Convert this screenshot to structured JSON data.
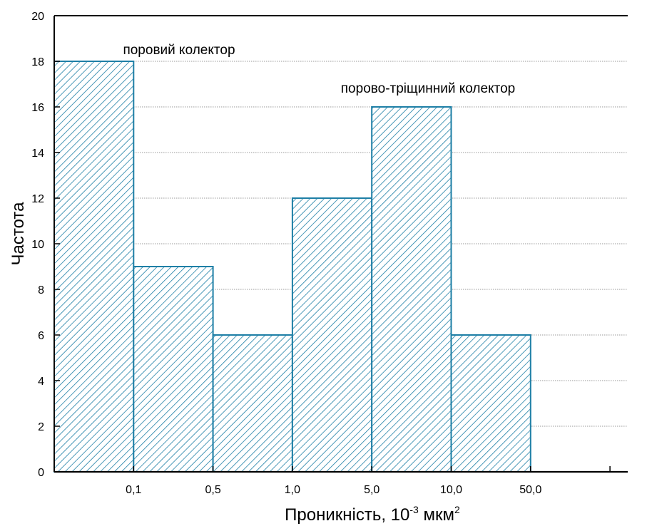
{
  "chart_data": {
    "type": "bar",
    "categories": [
      "",
      "0,1",
      "0,5",
      "1,0",
      "5,0",
      "10,0",
      "50,0"
    ],
    "series": [
      {
        "values": [
          18,
          9,
          6,
          12,
          16,
          6
        ]
      }
    ],
    "bins": [
      "<0,1",
      "0,1–0,5",
      "0,5–1,0",
      "1,0–5,0",
      "5,0–10,0",
      "10,0–50,0"
    ],
    "ylim": [
      0,
      20
    ],
    "yticks": [
      0,
      2,
      4,
      6,
      8,
      10,
      12,
      14,
      16,
      18,
      20
    ],
    "ylabel": "Частота",
    "xlabel": {
      "main": "Проникність, 10",
      "exp": "-3",
      "unit": " мкм",
      "unit_exp": "2"
    },
    "annotations": [
      "поровий колектор",
      "порово-тріщинний колектор"
    ],
    "grid": true,
    "bar_fill": "hatched",
    "bar_color": "#1e7fa6"
  }
}
